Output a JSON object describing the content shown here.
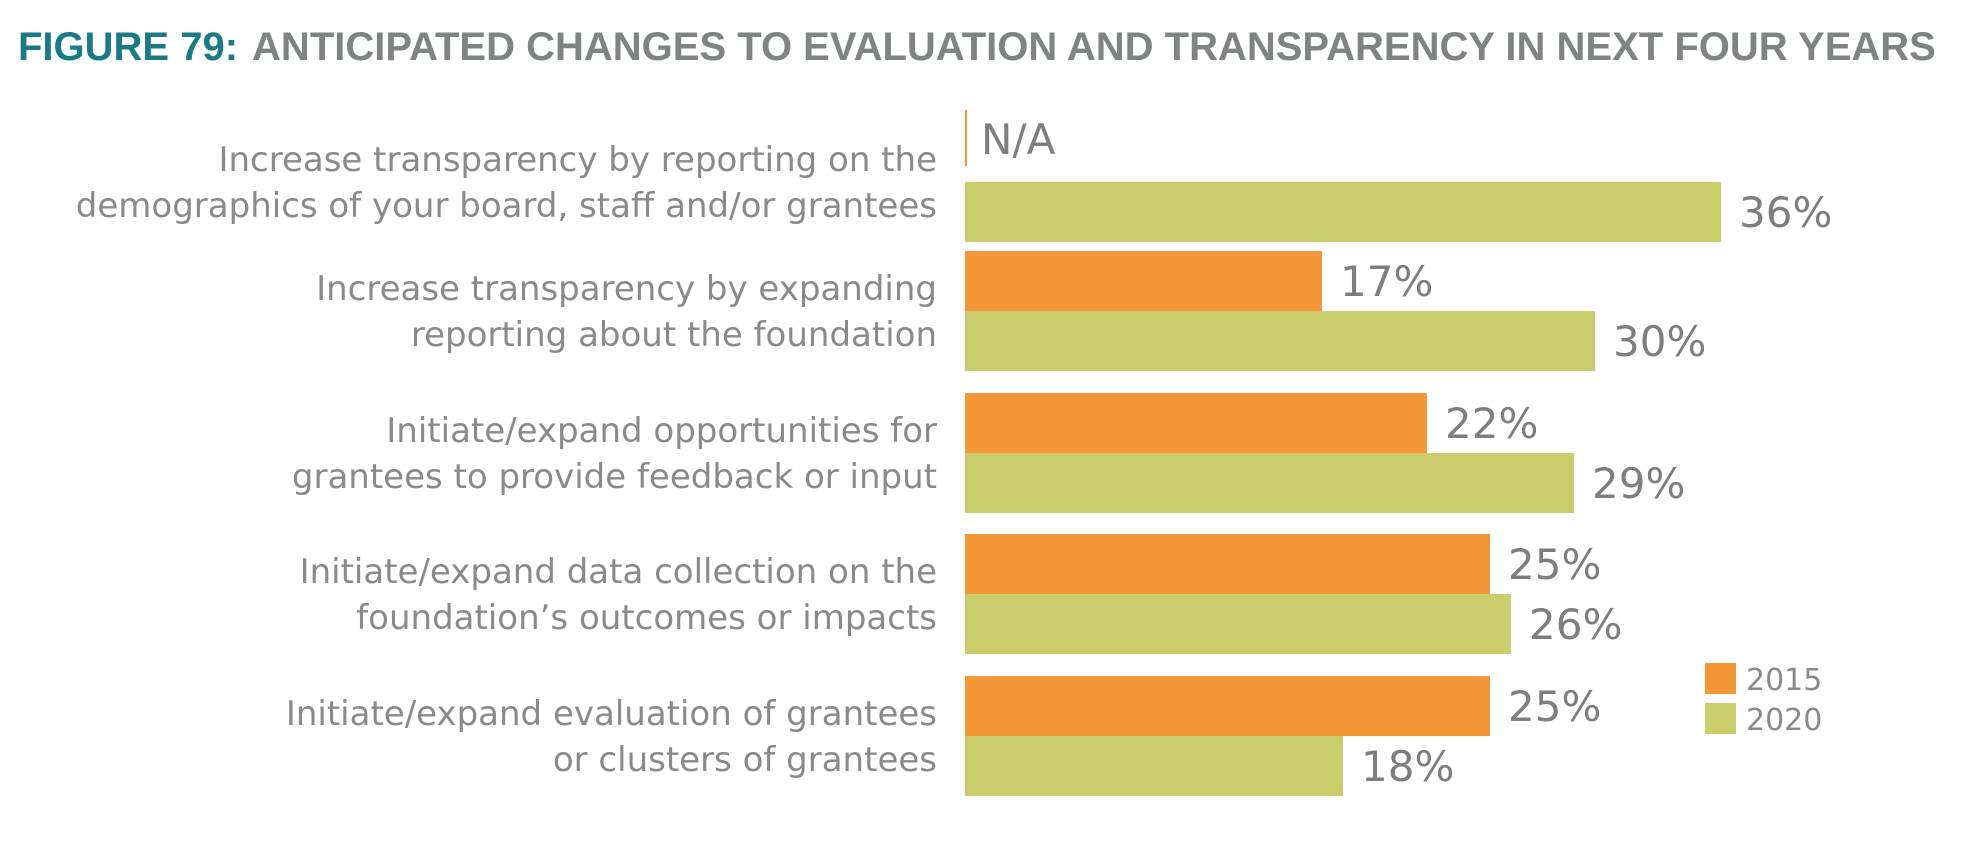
{
  "title": {
    "prefix": "FIGURE 79:",
    "main": "ANTICIPATED CHANGES TO EVALUATION AND TRANSPARENCY IN NEXT FOUR YEARS"
  },
  "colors": {
    "title_prefix": "#1a7a85",
    "title_main": "#808385",
    "series_2015": "#f39739",
    "series_2020": "#cbcd6c",
    "text": "#8a8a8a"
  },
  "chart_data": {
    "type": "bar",
    "orientation": "horizontal",
    "title": "FIGURE 79: ANTICIPATED CHANGES TO EVALUATION AND TRANSPARENCY IN NEXT FOUR YEARS",
    "xlim": [
      0,
      36
    ],
    "categories": [
      [
        "Increase transparency by reporting on the",
        "demographics of your board, staff and/or grantees"
      ],
      [
        "Increase transparency by expanding",
        "reporting about the foundation"
      ],
      [
        "Initiate/expand opportunities for",
        "grantees to provide feedback or input"
      ],
      [
        "Initiate/expand data collection on the",
        "foundation’s outcomes or impacts"
      ],
      [
        "Initiate/expand evaluation of grantees",
        "or clusters of grantees"
      ]
    ],
    "series": [
      {
        "name": "2015",
        "values": [
          null,
          17,
          22,
          25,
          25
        ],
        "labels": [
          "N/A",
          "17%",
          "22%",
          "25%",
          "25%"
        ]
      },
      {
        "name": "2020",
        "values": [
          36,
          30,
          29,
          26,
          18
        ],
        "labels": [
          "36%",
          "30%",
          "29%",
          "26%",
          "18%"
        ]
      }
    ],
    "legend": {
      "position": "bottom-right",
      "entries": [
        "2015",
        "2020"
      ]
    },
    "grid": false
  }
}
